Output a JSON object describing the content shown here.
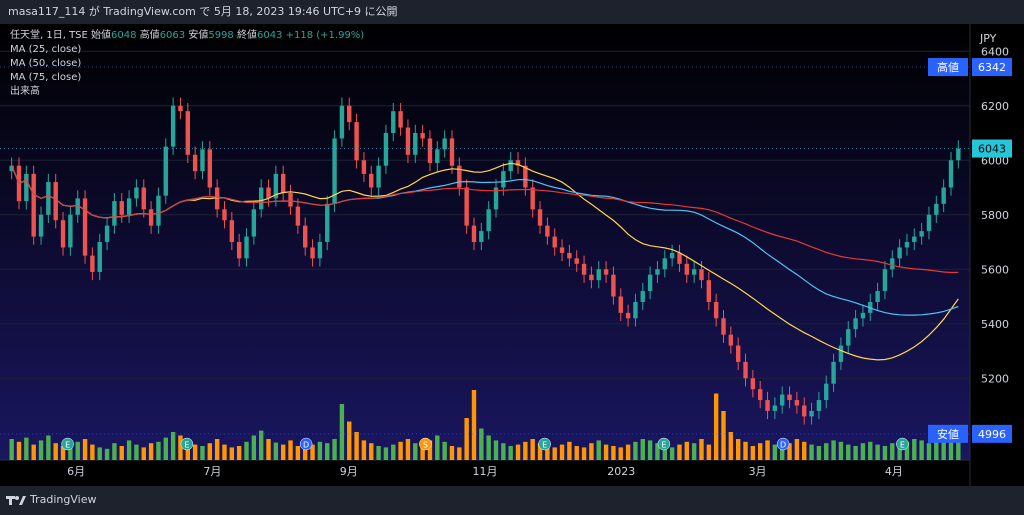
{
  "header": {
    "caption": "masa117_114 が TradingView.com で 5月 18, 2023 19:46 UTC+9 に公開"
  },
  "legend": {
    "symbol": "任天堂, 1日, TSE",
    "open_label": "始値",
    "open": "6048",
    "high_label": "高値",
    "high": "6063",
    "low_label": "安値",
    "low": "5998",
    "close_label": "終値",
    "close": "6043",
    "change": "+118 (+1.99%)",
    "ma25": "MA (25, close)",
    "ma50": "MA (50, close)",
    "ma75": "MA (75, close)",
    "volume": "出来高"
  },
  "footer": {
    "brand": "TradingView"
  },
  "colors": {
    "up": "#26a69a",
    "down": "#ef5350",
    "vol_up": "#4caf50",
    "vol_down": "#ff9800",
    "ma25": "#ffd54f",
    "ma50": "#4fc3f7",
    "ma75": "#e53935",
    "bg_top": "#000000",
    "bg_bottom": "#1a1660"
  },
  "chart_data": {
    "type": "candlestick",
    "currency": "JPY",
    "ylim": [
      4900,
      6500
    ],
    "y_ticks": [
      5200,
      5400,
      5600,
      5800,
      6000,
      6200,
      6400
    ],
    "x_ticks": [
      "6月",
      "7月",
      "9月",
      "11月",
      "2023",
      "3月",
      "4月"
    ],
    "price_labels": [
      {
        "text": "高値",
        "value": "6342",
        "price": 6342
      },
      {
        "text": "",
        "value": "6043",
        "price": 6043
      },
      {
        "text": "安値",
        "value": "4996",
        "price": 4996
      }
    ],
    "event_markers": [
      "E",
      "E",
      "D",
      "S",
      "E",
      "E",
      "D",
      "E"
    ],
    "price_path": [
      5980,
      5850,
      5950,
      5720,
      5800,
      5920,
      5780,
      5680,
      5800,
      5860,
      5650,
      5590,
      5700,
      5760,
      5850,
      5800,
      5860,
      5900,
      5820,
      5760,
      5870,
      6050,
      6200,
      6180,
      6020,
      5960,
      6040,
      5900,
      5820,
      5780,
      5700,
      5640,
      5720,
      5820,
      5900,
      5860,
      5950,
      5880,
      5830,
      5760,
      5680,
      5640,
      5700,
      5840,
      6080,
      6200,
      6140,
      6000,
      5950,
      5900,
      5980,
      6100,
      6180,
      6120,
      6020,
      6100,
      6080,
      5990,
      6040,
      6080,
      5980,
      5900,
      5760,
      5700,
      5740,
      5820,
      5900,
      5960,
      6000,
      5980,
      5900,
      5820,
      5760,
      5720,
      5680,
      5660,
      5640,
      5620,
      5580,
      5560,
      5600,
      5580,
      5500,
      5440,
      5420,
      5480,
      5520,
      5580,
      5600,
      5640,
      5660,
      5620,
      5580,
      5600,
      5560,
      5480,
      5420,
      5360,
      5320,
      5260,
      5200,
      5160,
      5120,
      5080,
      5100,
      5140,
      5120,
      5100,
      5060,
      5080,
      5120,
      5180,
      5260,
      5320,
      5380,
      5420,
      5440,
      5480,
      5520,
      5600,
      5640,
      5680,
      5700,
      5720,
      5740,
      5800,
      5840,
      5900,
      6000,
      6043
    ],
    "volume": [
      30,
      26,
      32,
      22,
      28,
      35,
      24,
      20,
      18,
      26,
      30,
      22,
      18,
      16,
      24,
      20,
      28,
      22,
      18,
      24,
      26,
      32,
      40,
      35,
      28,
      22,
      20,
      24,
      30,
      22,
      18,
      20,
      26,
      35,
      42,
      30,
      25,
      22,
      28,
      20,
      18,
      22,
      26,
      24,
      30,
      80,
      55,
      40,
      28,
      24,
      20,
      18,
      22,
      26,
      30,
      24,
      20,
      28,
      35,
      26,
      20,
      18,
      60,
      100,
      45,
      35,
      28,
      24,
      20,
      22,
      26,
      30,
      24,
      20,
      18,
      22,
      26,
      20,
      18,
      24,
      28,
      22,
      20,
      18,
      22,
      26,
      30,
      28,
      24,
      20,
      18,
      22,
      26,
      24,
      30,
      22,
      95,
      70,
      40,
      30,
      26,
      20,
      24,
      28,
      22,
      18,
      24,
      30,
      26,
      22,
      20,
      24,
      28,
      26,
      22,
      20,
      24,
      26,
      22,
      20,
      24,
      28,
      26,
      30,
      28,
      24,
      26,
      30,
      32,
      34
    ]
  }
}
